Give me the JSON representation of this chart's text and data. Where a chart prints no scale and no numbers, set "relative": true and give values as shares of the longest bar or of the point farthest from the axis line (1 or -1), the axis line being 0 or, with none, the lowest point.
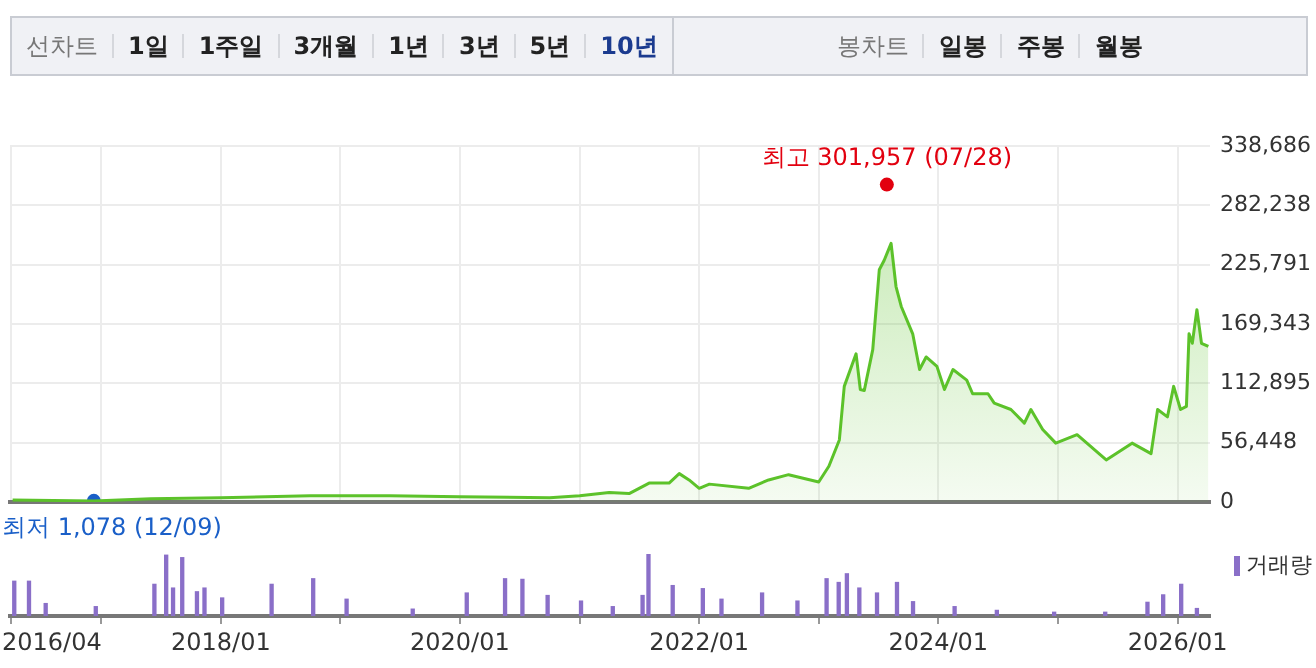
{
  "chart_data": [
    {
      "type": "area",
      "series": [
        {
          "type": "area",
          "color": "#5cc22a",
          "x": [
            "2016-04-05",
            "2016-12-09",
            "2017-06",
            "2018-01",
            "2018-10",
            "2019-06",
            "2020-01",
            "2020-10",
            "2021-01",
            "2021-04",
            "2021-06",
            "2021-08",
            "2021-10",
            "2021-11",
            "2021-12",
            "2022-01",
            "2022-02",
            "2022-06",
            "2022-08",
            "2022-10",
            "2023-01",
            "2023-02-01",
            "2023-03-05",
            "2023-03-20",
            "2023-04-25",
            "2023-05-08",
            "2023-05-20",
            "2023-06-15",
            "2023-07-05",
            "2023-07-20",
            "2023-08-10",
            "2023-08-25",
            "2023-09-10",
            "2023-10-15",
            "2023-11-05",
            "2023-11-25",
            "2023-12-28",
            "2024-01-20",
            "2024-02-15",
            "2024-03-28",
            "2024-04-15",
            "2024-06-01",
            "2024-06-20",
            "2024-08-10",
            "2024-09-20",
            "2024-10-10",
            "2024-11-15",
            "2024-12-25",
            "2025-02-28",
            "2025-05-28",
            "2025-08-15",
            "2025-10-12",
            "2025-11-01",
            "2025-12-01",
            "2025-12-20",
            "2026-01-10",
            "2026-01-28",
            "2026-02-05",
            "2026-02-15",
            "2026-03-01",
            "2026-03-15",
            "2026-04-05"
          ],
          "values": [
            2000,
            1000,
            3000,
            4000,
            6000,
            6000,
            5000,
            4000,
            6000,
            9000,
            8000,
            18000,
            18000,
            27000,
            21000,
            13000,
            17000,
            13000,
            21000,
            26000,
            19000,
            34000,
            59000,
            110000,
            141000,
            107000,
            106000,
            145000,
            221000,
            230000,
            246000,
            205000,
            186000,
            160000,
            126000,
            138000,
            129000,
            107000,
            126000,
            116000,
            103000,
            103000,
            94000,
            88000,
            75000,
            88000,
            69000,
            56000,
            64000,
            40000,
            56000,
            46000,
            88000,
            81000,
            110000,
            88000,
            91000,
            160000,
            151000,
            183000,
            151000,
            148000
          ]
        },
        {
          "type": "scatter",
          "marker": "circle",
          "x": [
            "2023-07-28",
            "2016-12-09"
          ],
          "values": [
            301957,
            1078
          ],
          "colors": [
            "#e2000f",
            "#1a5fc8"
          ],
          "value_labels": [
            "최고 301,957 (07/28)",
            "최저 1,078 (12/09)"
          ]
        }
      ],
      "xlim": [
        "2016-03-28",
        "2026-04-10"
      ],
      "xticks": [
        {
          "value": "2016-04",
          "label": null
        },
        {
          "value": "2017-01",
          "label": null
        },
        {
          "value": "2018-01",
          "label": null
        },
        {
          "value": "2019-01",
          "label": null
        },
        {
          "value": "2020-01",
          "label": null
        },
        {
          "value": "2021-01",
          "label": null
        },
        {
          "value": "2022-01",
          "label": null
        },
        {
          "value": "2023-01",
          "label": null
        },
        {
          "value": "2024-01",
          "label": null
        },
        {
          "value": "2025-01",
          "label": null
        },
        {
          "value": "2026-01",
          "label": null
        }
      ],
      "ylim": [
        0,
        338686
      ],
      "yticks": [
        {
          "value": 0,
          "label": "0"
        },
        {
          "value": 56448,
          "label": "56,448"
        },
        {
          "value": 112895,
          "label": "112,895"
        },
        {
          "value": 169343,
          "label": "169,343"
        },
        {
          "value": 225791,
          "label": "225,791"
        },
        {
          "value": 282238,
          "label": "282,238"
        },
        {
          "value": 338686,
          "label": "338,686"
        }
      ],
      "grid": true,
      "tick_labels": "y",
      "legend": false,
      "annotations": [
        "선차트",
        "1일",
        "1주일",
        "3개월",
        "1년",
        "3년",
        "5년",
        "10년",
        "봉차트",
        "일봉",
        "주봉",
        "월봉"
      ]
    },
    {
      "type": "bar",
      "relative": true,
      "series": [
        {
          "name": "거래량",
          "color": "#8a6fc8",
          "x": [
            "2016-04-10",
            "2016-05-25",
            "2016-07-15",
            "2016-12-15",
            "2017-06-12",
            "2017-07-18",
            "2017-08-08",
            "2017-09-05",
            "2017-10-20",
            "2017-11-12",
            "2018-01-05",
            "2018-06-05",
            "2018-10-10",
            "2019-01-20",
            "2019-08-10",
            "2020-01-22",
            "2020-05-18",
            "2020-07-10",
            "2020-09-25",
            "2021-01-05",
            "2021-04-12",
            "2021-07-12",
            "2021-07-30",
            "2021-10-12",
            "2022-01-12",
            "2022-03-10",
            "2022-07-12",
            "2022-10-28",
            "2023-01-25",
            "2023-03-03",
            "2023-03-28",
            "2023-05-05",
            "2023-06-28",
            "2023-08-28",
            "2023-10-16",
            "2024-02-20",
            "2024-06-28",
            "2024-12-20",
            "2025-05-25",
            "2025-10-01",
            "2025-11-18",
            "2026-01-12",
            "2026-03-01"
          ],
          "values": [
            0.56,
            0.56,
            0.2,
            0.15,
            0.51,
            0.98,
            0.45,
            0.94,
            0.39,
            0.45,
            0.29,
            0.51,
            0.6,
            0.27,
            0.11,
            0.37,
            0.6,
            0.59,
            0.33,
            0.24,
            0.15,
            0.33,
            1,
            0.49,
            0.44,
            0.27,
            0.37,
            0.24,
            0.6,
            0.54,
            0.68,
            0.45,
            0.37,
            0.54,
            0.23,
            0.15,
            0.09,
            0.06,
            0.06,
            0.22,
            0.34,
            0.51,
            0.12
          ]
        }
      ],
      "xlim": [
        "2016-03-28",
        "2026-04-10"
      ],
      "xticks": [
        {
          "value": "2016-04",
          "label": "2016/04"
        },
        {
          "value": "2017-01",
          "label": null
        },
        {
          "value": "2018-01",
          "label": "2018/01"
        },
        {
          "value": "2019-01",
          "label": null
        },
        {
          "value": "2020-01",
          "label": "2020/01"
        },
        {
          "value": "2021-01",
          "label": null
        },
        {
          "value": "2022-01",
          "label": "2022/01"
        },
        {
          "value": "2023-01",
          "label": null
        },
        {
          "value": "2024-01",
          "label": "2024/01"
        },
        {
          "value": "2025-01",
          "label": null
        },
        {
          "value": "2026-01",
          "label": "2026/01"
        }
      ],
      "tick_labels": "x",
      "legend": "top right"
    }
  ]
}
